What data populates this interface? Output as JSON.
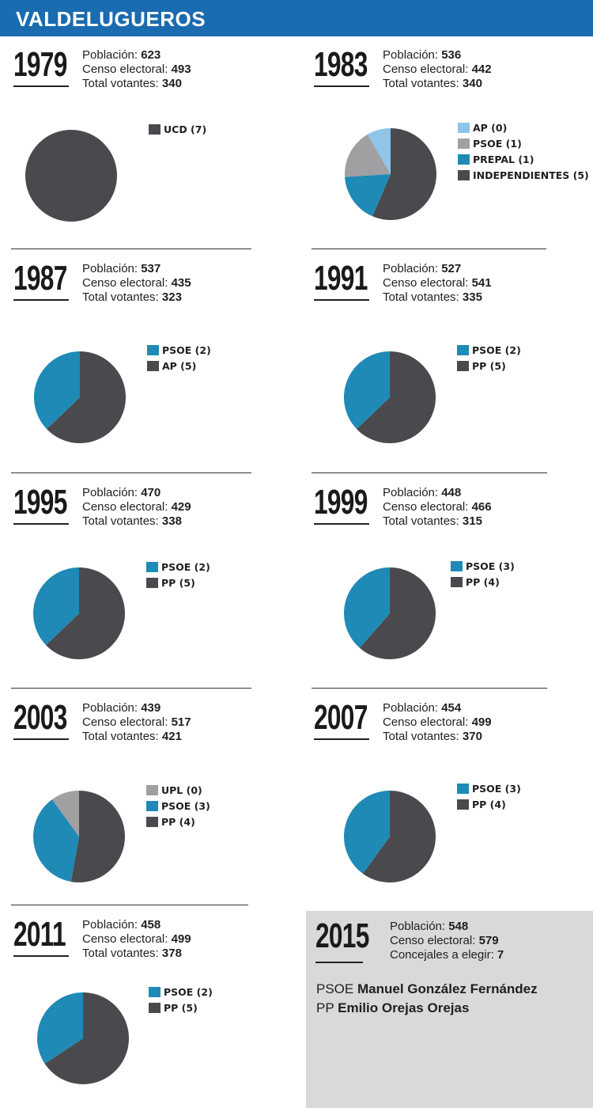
{
  "header": {
    "title": "VALDELUGUEROS"
  },
  "labels": {
    "poblacion": "Población: ",
    "censo": "Censo electoral: ",
    "votantes": "Total votantes: ",
    "concejales": "Concejales a elegir: "
  },
  "colors": {
    "header": "#1a6bb0",
    "dark": "#4a4a4e",
    "blue": "#1f8ab5",
    "gray": "#a0a0a2",
    "lightblue": "#8ec5e8"
  },
  "chart_data": [
    {
      "type": "pie",
      "year": "1979",
      "poblacion": "623",
      "censo": "493",
      "votantes": "340",
      "slices": [
        {
          "label": "UCD (7)",
          "party": "UCD",
          "value": 7,
          "color": "#4a4a4e"
        }
      ]
    },
    {
      "type": "pie",
      "year": "1983",
      "poblacion": "536",
      "censo": "442",
      "votantes": "340",
      "slices": [
        {
          "label": "AP (0)",
          "party": "AP",
          "value": 0.55,
          "color": "#8ec5e8"
        },
        {
          "label": "PSOE (1)",
          "party": "PSOE",
          "value": 1.15,
          "color": "#a0a0a2"
        },
        {
          "label": "PREPAL (1)",
          "party": "PREPAL",
          "value": 1.15,
          "color": "#1f8ab5"
        },
        {
          "label": "INDEPENDIENTES (5)",
          "party": "INDEPENDIENTES",
          "value": 3.7,
          "color": "#4a4a4e"
        }
      ]
    },
    {
      "type": "pie",
      "year": "1987",
      "poblacion": "537",
      "censo": "435",
      "votantes": "323",
      "slices": [
        {
          "label": "PSOE (2)",
          "party": "PSOE",
          "value": 2.6,
          "color": "#1f8ab5"
        },
        {
          "label": "AP (5)",
          "party": "AP",
          "value": 4.4,
          "color": "#4a4a4e"
        }
      ]
    },
    {
      "type": "pie",
      "year": "1991",
      "poblacion": "527",
      "censo": "541",
      "votantes": "335",
      "slices": [
        {
          "label": "PSOE (2)",
          "party": "PSOE",
          "value": 2.6,
          "color": "#1f8ab5"
        },
        {
          "label": "PP (5)",
          "party": "PP",
          "value": 4.4,
          "color": "#4a4a4e"
        }
      ]
    },
    {
      "type": "pie",
      "year": "1995",
      "poblacion": "470",
      "censo": "429",
      "votantes": "338",
      "slices": [
        {
          "label": "PSOE (2)",
          "party": "PSOE",
          "value": 2.6,
          "color": "#1f8ab5"
        },
        {
          "label": "PP (5)",
          "party": "PP",
          "value": 4.4,
          "color": "#4a4a4e"
        }
      ]
    },
    {
      "type": "pie",
      "year": "1999",
      "poblacion": "448",
      "censo": "466",
      "votantes": "315",
      "slices": [
        {
          "label": "PSOE (3)",
          "party": "PSOE",
          "value": 2.7,
          "color": "#1f8ab5"
        },
        {
          "label": "PP (4)",
          "party": "PP",
          "value": 4.3,
          "color": "#4a4a4e"
        }
      ]
    },
    {
      "type": "pie",
      "year": "2003",
      "poblacion": "439",
      "censo": "517",
      "votantes": "421",
      "slices": [
        {
          "label": "UPL (0)",
          "party": "UPL",
          "value": 0.7,
          "color": "#a0a0a2"
        },
        {
          "label": "PSOE (3)",
          "party": "PSOE",
          "value": 2.6,
          "color": "#1f8ab5"
        },
        {
          "label": "PP (4)",
          "party": "PP",
          "value": 3.7,
          "color": "#4a4a4e"
        }
      ]
    },
    {
      "type": "pie",
      "year": "2007",
      "poblacion": "454",
      "censo": "499",
      "votantes": "370",
      "slices": [
        {
          "label": "PSOE (3)",
          "party": "PSOE",
          "value": 2.8,
          "color": "#1f8ab5"
        },
        {
          "label": "PP (4)",
          "party": "PP",
          "value": 4.2,
          "color": "#4a4a4e"
        }
      ]
    },
    {
      "type": "pie",
      "year": "2011",
      "poblacion": "458",
      "censo": "499",
      "votantes": "378",
      "slices": [
        {
          "label": "PSOE (2)",
          "party": "PSOE",
          "value": 2.4,
          "color": "#1f8ab5"
        },
        {
          "label": "PP (5)",
          "party": "PP",
          "value": 4.6,
          "color": "#4a4a4e"
        }
      ]
    }
  ],
  "election2015": {
    "year": "2015",
    "poblacion": "548",
    "censo": "579",
    "concejales": "7",
    "candidates": [
      {
        "party": "PSOE",
        "name": "Manuel González Fernández"
      },
      {
        "party": "PP",
        "name": "Emilio Orejas Orejas"
      }
    ]
  }
}
